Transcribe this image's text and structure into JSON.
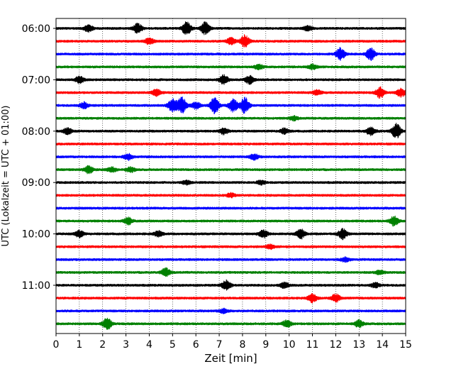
{
  "chart_data": {
    "type": "line",
    "subtype": "helicorder-seismogram",
    "xlabel": "Zeit  [min]",
    "ylabel": "UTC (Lokalzeit = UTC + 01:00)",
    "xlim": [
      0,
      15
    ],
    "x_ticks": [
      "0",
      "1",
      "2",
      "3",
      "4",
      "5",
      "6",
      "7",
      "8",
      "9",
      "10",
      "11",
      "12",
      "13",
      "14",
      "15"
    ],
    "y_tick_labels": [
      "06:00",
      "07:00",
      "08:00",
      "09:00",
      "10:00",
      "11:00"
    ],
    "grid": "vertical dotted lines at each minute",
    "colors": [
      "#000000",
      "#ff0000",
      "#0000ff",
      "#008000"
    ],
    "line_count": 24,
    "line_interval_min": 15,
    "first_line_utc": "06:00",
    "bursts": [
      {
        "line": 0,
        "x": 1.4,
        "amp": 0.5
      },
      {
        "line": 0,
        "x": 3.5,
        "amp": 0.7
      },
      {
        "line": 0,
        "x": 5.6,
        "amp": 1.0
      },
      {
        "line": 0,
        "x": 6.4,
        "amp": 0.9
      },
      {
        "line": 0,
        "x": 10.8,
        "amp": 0.35
      },
      {
        "line": 1,
        "x": 4.0,
        "amp": 0.5
      },
      {
        "line": 1,
        "x": 7.5,
        "amp": 0.5
      },
      {
        "line": 1,
        "x": 8.1,
        "amp": 0.9
      },
      {
        "line": 2,
        "x": 12.2,
        "amp": 0.9
      },
      {
        "line": 2,
        "x": 13.5,
        "amp": 0.9
      },
      {
        "line": 3,
        "x": 8.7,
        "amp": 0.35
      },
      {
        "line": 3,
        "x": 11.0,
        "amp": 0.35
      },
      {
        "line": 4,
        "x": 1.0,
        "amp": 0.5
      },
      {
        "line": 4,
        "x": 7.2,
        "amp": 0.7
      },
      {
        "line": 4,
        "x": 8.3,
        "amp": 0.6
      },
      {
        "line": 5,
        "x": 4.3,
        "amp": 0.5
      },
      {
        "line": 5,
        "x": 11.2,
        "amp": 0.35
      },
      {
        "line": 5,
        "x": 13.9,
        "amp": 0.8
      },
      {
        "line": 5,
        "x": 14.8,
        "amp": 0.6
      },
      {
        "line": 6,
        "x": 1.2,
        "amp": 0.45
      },
      {
        "line": 6,
        "x": 5.0,
        "amp": 1.0
      },
      {
        "line": 6,
        "x": 5.4,
        "amp": 1.2
      },
      {
        "line": 6,
        "x": 6.0,
        "amp": 0.5
      },
      {
        "line": 6,
        "x": 6.8,
        "amp": 1.2
      },
      {
        "line": 6,
        "x": 7.6,
        "amp": 1.0
      },
      {
        "line": 6,
        "x": 8.1,
        "amp": 1.2
      },
      {
        "line": 7,
        "x": 10.2,
        "amp": 0.3
      },
      {
        "line": 8,
        "x": 0.5,
        "amp": 0.45
      },
      {
        "line": 8,
        "x": 7.2,
        "amp": 0.45
      },
      {
        "line": 8,
        "x": 9.8,
        "amp": 0.4
      },
      {
        "line": 8,
        "x": 13.5,
        "amp": 0.6
      },
      {
        "line": 8,
        "x": 14.6,
        "amp": 1.1
      },
      {
        "line": 10,
        "x": 3.1,
        "amp": 0.45
      },
      {
        "line": 10,
        "x": 8.5,
        "amp": 0.4
      },
      {
        "line": 11,
        "x": 1.4,
        "amp": 0.55
      },
      {
        "line": 11,
        "x": 2.4,
        "amp": 0.35
      },
      {
        "line": 11,
        "x": 3.2,
        "amp": 0.35
      },
      {
        "line": 12,
        "x": 5.6,
        "amp": 0.3
      },
      {
        "line": 12,
        "x": 8.8,
        "amp": 0.3
      },
      {
        "line": 13,
        "x": 7.5,
        "amp": 0.3
      },
      {
        "line": 15,
        "x": 3.1,
        "amp": 0.5
      },
      {
        "line": 15,
        "x": 14.5,
        "amp": 0.7
      },
      {
        "line": 16,
        "x": 1.0,
        "amp": 0.5
      },
      {
        "line": 16,
        "x": 4.4,
        "amp": 0.4
      },
      {
        "line": 16,
        "x": 8.9,
        "amp": 0.55
      },
      {
        "line": 16,
        "x": 10.5,
        "amp": 0.7
      },
      {
        "line": 16,
        "x": 12.3,
        "amp": 0.75
      },
      {
        "line": 17,
        "x": 9.2,
        "amp": 0.3
      },
      {
        "line": 18,
        "x": 12.4,
        "amp": 0.3
      },
      {
        "line": 19,
        "x": 4.7,
        "amp": 0.6
      },
      {
        "line": 19,
        "x": 13.9,
        "amp": 0.3
      },
      {
        "line": 20,
        "x": 7.3,
        "amp": 0.7
      },
      {
        "line": 20,
        "x": 9.8,
        "amp": 0.4
      },
      {
        "line": 20,
        "x": 13.7,
        "amp": 0.35
      },
      {
        "line": 21,
        "x": 11.0,
        "amp": 0.6
      },
      {
        "line": 21,
        "x": 12.0,
        "amp": 0.6
      },
      {
        "line": 22,
        "x": 7.2,
        "amp": 0.3
      },
      {
        "line": 23,
        "x": 2.2,
        "amp": 0.9
      },
      {
        "line": 23,
        "x": 9.9,
        "amp": 0.5
      },
      {
        "line": 23,
        "x": 13.0,
        "amp": 0.5
      }
    ]
  }
}
